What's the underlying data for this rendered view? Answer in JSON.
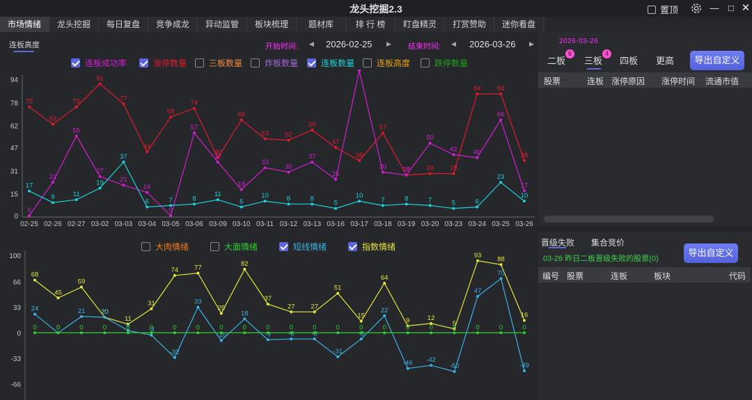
{
  "app": {
    "title": "龙头挖掘2.3",
    "pin_label": "置顶"
  },
  "tabs": [
    "市场情绪",
    "龙头挖掘",
    "每日复盘",
    "竞争成龙",
    "异动监管",
    "板块梳理",
    "题材库",
    "排 行 榜",
    "盯盘精灵",
    "打赏赞助",
    "迷你看盘"
  ],
  "subtab": "连板高度",
  "date_range": {
    "start_label": "开始时间:",
    "start_value": "2026-02-25",
    "end_label": "结束时间:",
    "end_value": "2026-03-26"
  },
  "top_legend": [
    {
      "label": "连板成功率",
      "checked": true,
      "color": "#d21fd2"
    },
    {
      "label": "涨停数量",
      "checked": true,
      "color": "#e01c2c"
    },
    {
      "label": "三板数量",
      "checked": false,
      "color": "#f08a3c"
    },
    {
      "label": "炸板数量",
      "checked": false,
      "color": "#a06ad8"
    },
    {
      "label": "连板数量",
      "checked": true,
      "color": "#19d3dc"
    },
    {
      "label": "连板高度",
      "checked": false,
      "color": "#e8a317"
    },
    {
      "label": "跌停数量",
      "checked": false,
      "color": "#1da21d"
    }
  ],
  "bottom_legend": [
    {
      "label": "大肉情绪",
      "checked": false,
      "color": "#f07a1a"
    },
    {
      "label": "大面情绪",
      "checked": false,
      "color": "#2fd02f"
    },
    {
      "label": "短线情绪",
      "checked": true,
      "color": "#3bb3e6"
    },
    {
      "label": "指数情绪",
      "checked": true,
      "color": "#e6e63c"
    }
  ],
  "chart_data": [
    {
      "type": "line",
      "x": [
        "02-25",
        "02-26",
        "02-27",
        "03-02",
        "03-03",
        "03-04",
        "03-05",
        "03-06",
        "03-09",
        "03-10",
        "03-11",
        "03-12",
        "03-13",
        "03-16",
        "03-17",
        "03-18",
        "03-19",
        "03-20",
        "03-23",
        "03-24",
        "03-25",
        "03-26"
      ],
      "yticks": [
        0,
        15,
        31,
        47,
        62,
        78,
        94
      ],
      "ylim": [
        0,
        94
      ],
      "series": [
        {
          "name": "涨停数量",
          "color": "#e01c2c",
          "values": [
            75,
            63,
            75,
            91,
            77,
            44,
            68,
            74,
            40,
            66,
            53,
            52,
            59,
            47,
            38,
            57,
            28,
            29,
            29,
            84,
            84,
            38
          ]
        },
        {
          "name": "连板成功率",
          "color": "#d21fd2",
          "values": [
            0,
            23,
            55,
            27,
            21,
            16,
            0,
            57,
            37,
            18,
            33,
            30,
            37,
            25,
            100,
            30,
            28,
            50,
            42,
            40,
            66,
            17
          ]
        },
        {
          "name": "连板数量",
          "color": "#19d3dc",
          "values": [
            17,
            9,
            11,
            19,
            37,
            6,
            7,
            8,
            11,
            6,
            10,
            8,
            8,
            5,
            10,
            7,
            8,
            7,
            5,
            6,
            23,
            10
          ]
        }
      ]
    },
    {
      "type": "line",
      "x": [
        "02-25",
        "02-26",
        "02-27",
        "03-02",
        "03-03",
        "03-04",
        "03-05",
        "03-06",
        "03-09",
        "03-10",
        "03-11",
        "03-12",
        "03-13",
        "03-16",
        "03-17",
        "03-18",
        "03-19",
        "03-20",
        "03-23",
        "03-24",
        "03-25",
        "03-26"
      ],
      "yticks": [
        -66,
        -33,
        0,
        33,
        66,
        100
      ],
      "ylim": [
        -93,
        100
      ],
      "series": [
        {
          "name": "指数情绪",
          "color": "#e6e63c",
          "values": [
            68,
            45,
            59,
            20,
            11,
            31,
            74,
            77,
            25,
            82,
            37,
            27,
            27,
            51,
            15,
            64,
            9,
            12,
            5,
            93,
            88,
            16
          ]
        },
        {
          "name": "短线情绪",
          "color": "#3bb3e6",
          "values": [
            24,
            0,
            21,
            20,
            3,
            -3,
            -32,
            33,
            -10,
            18,
            -9,
            -8,
            -8,
            -31,
            -8,
            22,
            -46,
            -42,
            -50,
            47,
            70,
            -49
          ]
        },
        {
          "name": "大面情绪",
          "color": "#2fd02f",
          "values": [
            0,
            0,
            0,
            0,
            0,
            0,
            0,
            0,
            0,
            0,
            0,
            0,
            0,
            0,
            0,
            0,
            0,
            0,
            0,
            0,
            0,
            0
          ]
        }
      ]
    }
  ],
  "right_panel": {
    "date": "2026-03-26",
    "board_tabs": [
      {
        "label": "二板",
        "badge": "6"
      },
      {
        "label": "三板",
        "badge": "4"
      },
      {
        "label": "四板",
        "badge": ""
      },
      {
        "label": "更高",
        "badge": ""
      }
    ],
    "export_label": "导出自定义",
    "table1_headers": [
      "股票",
      "连板",
      "涨停原因",
      "涨停时间",
      "流通市值"
    ],
    "section_tabs": [
      "晋级失败",
      "集合竞价"
    ],
    "note": "03-26 昨日二板晋级失败的股票(0)",
    "table2_headers": [
      "编号",
      "股票",
      "连板",
      "板块",
      "代码"
    ]
  }
}
